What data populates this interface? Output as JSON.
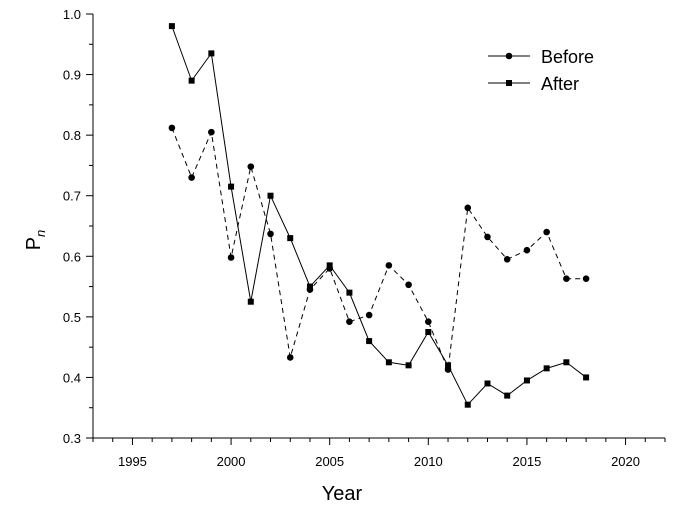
{
  "chart_data": {
    "type": "line",
    "title": "",
    "xlabel": "Year",
    "ylabel": {
      "main": "P",
      "sub": "n"
    },
    "xlim": [
      1993,
      2022
    ],
    "ylim": [
      0.3,
      1.0
    ],
    "xticks": [
      1995,
      2000,
      2005,
      2010,
      2015,
      2020
    ],
    "yticks": [
      0.3,
      0.4,
      0.5,
      0.6,
      0.7,
      0.8,
      0.9,
      1.0
    ],
    "grid": false,
    "legend_position": "top-right",
    "series": [
      {
        "name": "Before",
        "line_style": "dashed",
        "marker": "circle",
        "color": "#000000",
        "x": [
          1997,
          1998,
          1999,
          2000,
          2001,
          2002,
          2003,
          2004,
          2005,
          2006,
          2007,
          2008,
          2009,
          2010,
          2011,
          2012,
          2013,
          2014,
          2015,
          2016,
          2017,
          2018
        ],
        "y": [
          0.812,
          0.73,
          0.805,
          0.598,
          0.748,
          0.637,
          0.433,
          0.545,
          0.58,
          0.492,
          0.503,
          0.585,
          0.553,
          0.492,
          0.413,
          0.68,
          0.632,
          0.595,
          0.61,
          0.64,
          0.563,
          0.563
        ]
      },
      {
        "name": "After",
        "line_style": "solid",
        "marker": "square",
        "color": "#000000",
        "x": [
          1997,
          1998,
          1999,
          2000,
          2001,
          2002,
          2003,
          2004,
          2005,
          2006,
          2007,
          2008,
          2009,
          2010,
          2011,
          2012,
          2013,
          2014,
          2015,
          2016,
          2017,
          2018
        ],
        "y": [
          0.98,
          0.89,
          0.935,
          0.715,
          0.525,
          0.7,
          0.63,
          0.55,
          0.585,
          0.54,
          0.46,
          0.425,
          0.42,
          0.475,
          0.42,
          0.355,
          0.39,
          0.37,
          0.395,
          0.415,
          0.425,
          0.4
        ]
      }
    ]
  }
}
